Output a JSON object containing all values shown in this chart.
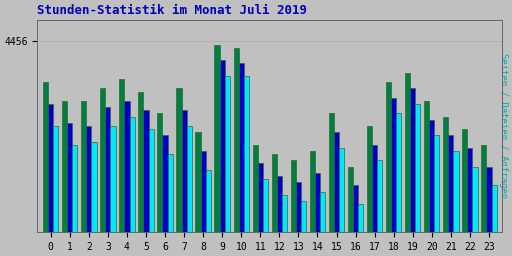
{
  "title": "Stunden-Statistik im Monat Juli 2019",
  "ylabel_right": "Seiten / Dateien / Anfragen",
  "x_labels": [
    "0",
    "1",
    "2",
    "3",
    "4",
    "5",
    "6",
    "7",
    "8",
    "9",
    "10",
    "11",
    "12",
    "13",
    "14",
    "15",
    "16",
    "17",
    "18",
    "19",
    "20",
    "21",
    "22",
    "23"
  ],
  "ytick": 4456,
  "background_color": "#c0c0c0",
  "plot_bg": "#c0c0c0",
  "bar_colors": [
    "#008040",
    "#0000cc",
    "#00e8ff"
  ],
  "bar_edge_color": "#336633",
  "title_color": "#0000bb",
  "ylabel_color": "#00aaaa",
  "seiten": [
    4390,
    4360,
    4360,
    4380,
    4395,
    4375,
    4340,
    4380,
    4310,
    4450,
    4445,
    4290,
    4275,
    4265,
    4280,
    4340,
    4255,
    4320,
    4390,
    4405,
    4360,
    4335,
    4315,
    4290
  ],
  "dateien": [
    4355,
    4325,
    4320,
    4350,
    4360,
    4345,
    4305,
    4345,
    4280,
    4425,
    4420,
    4260,
    4240,
    4230,
    4245,
    4310,
    4225,
    4290,
    4365,
    4380,
    4330,
    4305,
    4285,
    4255
  ],
  "anfragen": [
    4320,
    4290,
    4295,
    4320,
    4335,
    4315,
    4275,
    4320,
    4250,
    4400,
    4400,
    4235,
    4210,
    4200,
    4215,
    4285,
    4195,
    4265,
    4340,
    4355,
    4305,
    4280,
    4255,
    4225
  ],
  "ylim_min": 4150,
  "ylim_max": 4490,
  "figsize": [
    5.12,
    2.56
  ],
  "dpi": 100,
  "bar_width": 0.27
}
